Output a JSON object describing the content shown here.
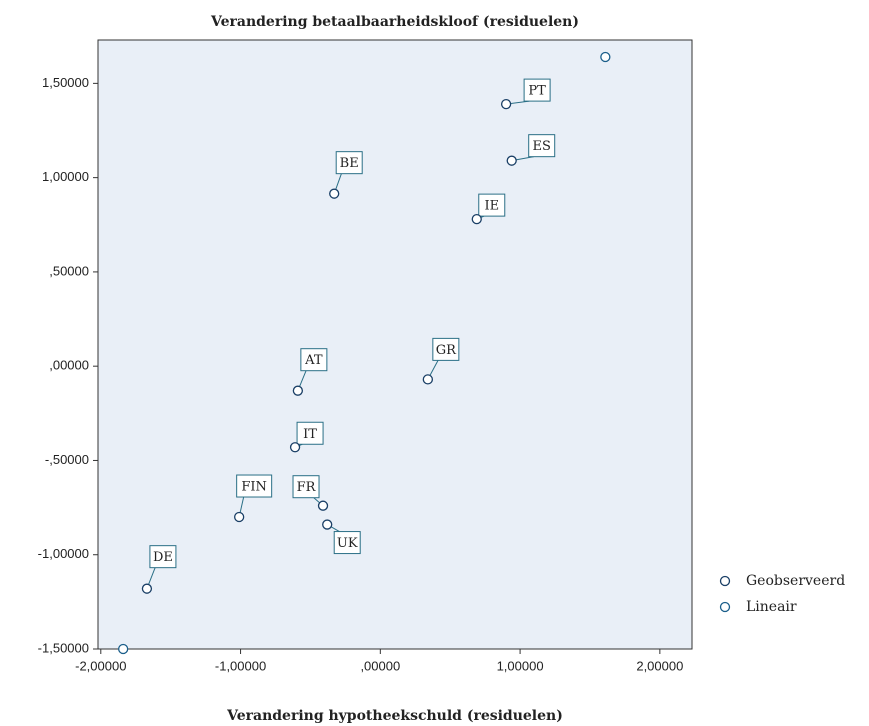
{
  "chart_data": {
    "type": "scatter",
    "title": "Verandering betaalbaarheidskloof (residuelen)",
    "x_label": "Verandering hypotheekschuld (residuelen)",
    "xlim": [
      -2.02,
      2.23
    ],
    "ylim": [
      -1.5,
      1.73
    ],
    "xticks": [
      {
        "value": -2,
        "label": "-2,00000"
      },
      {
        "value": -1,
        "label": "-1,00000"
      },
      {
        "value": 0,
        "label": ",00000"
      },
      {
        "value": 1,
        "label": "1,00000"
      },
      {
        "value": 2,
        "label": "2,00000"
      }
    ],
    "yticks": [
      {
        "value": -1.5,
        "label": "-1,50000"
      },
      {
        "value": -1,
        "label": "-1,00000"
      },
      {
        "value": -0.5,
        "label": "-,50000"
      },
      {
        "value": 0,
        "label": ",00000"
      },
      {
        "value": 0.5,
        "label": ",50000"
      },
      {
        "value": 1,
        "label": "1,00000"
      },
      {
        "value": 1.5,
        "label": "1,50000"
      }
    ],
    "background": "#e9eff7",
    "series": [
      {
        "name": "Geobserveerd",
        "color": "#1a3f66",
        "point_labels": [
          "PT",
          "ES",
          "BE",
          "IE",
          "AT",
          "GR",
          "IT",
          "FIN",
          "FR",
          "UK",
          "DE"
        ],
        "x": [
          0.9,
          0.94,
          -0.33,
          0.69,
          -0.59,
          0.34,
          -0.61,
          -1.01,
          -0.41,
          -0.38,
          -1.67
        ],
        "values": [
          1.39,
          1.09,
          0.915,
          0.78,
          -0.13,
          -0.07,
          -0.43,
          -0.8,
          -0.74,
          -0.84,
          -1.18
        ]
      },
      {
        "name": "Lineair",
        "color": "#1b5e8a",
        "x": [
          -1.84,
          1.61
        ],
        "values": [
          -1.5,
          1.64
        ]
      }
    ]
  }
}
